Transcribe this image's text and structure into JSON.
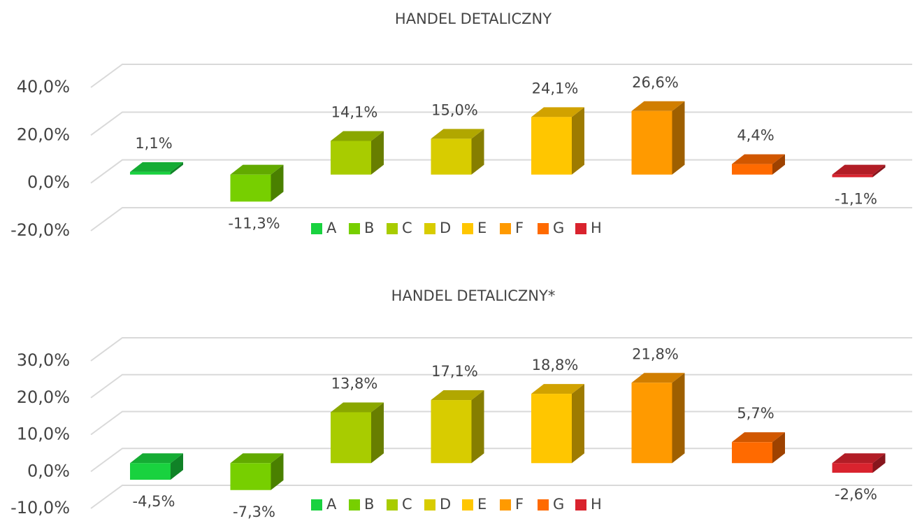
{
  "chart_data": [
    {
      "type": "bar3d",
      "title": "HANDEL DETALICZNY",
      "categories": [
        "A",
        "B",
        "C",
        "D",
        "E",
        "F",
        "G",
        "H"
      ],
      "colors": [
        "#19d23f",
        "#77cf00",
        "#a8cc00",
        "#d8cc00",
        "#ffc600",
        "#ff9a00",
        "#ff6a00",
        "#d9232e"
      ],
      "values": [
        1.1,
        -11.3,
        14.1,
        15.0,
        24.1,
        26.6,
        4.4,
        -1.1
      ],
      "value_labels": [
        "1,1%",
        "-11,3%",
        "14,1%",
        "15,0%",
        "24,1%",
        "26,6%",
        "4,4%",
        "-1,1%"
      ],
      "ylim": [
        -20,
        40
      ],
      "yticks": [
        {
          "value": -20,
          "label": "-20,0%"
        },
        {
          "value": 0,
          "label": "0,0%"
        },
        {
          "value": 20,
          "label": "20,0%"
        },
        {
          "value": 40,
          "label": "40,0%"
        }
      ],
      "grid": true,
      "legend": "bottom"
    },
    {
      "type": "bar3d",
      "title": "HANDEL DETALICZNY*",
      "categories": [
        "A",
        "B",
        "C",
        "D",
        "E",
        "F",
        "G",
        "H"
      ],
      "colors": [
        "#19d23f",
        "#77cf00",
        "#a8cc00",
        "#d8cc00",
        "#ffc600",
        "#ff9a00",
        "#ff6a00",
        "#d9232e"
      ],
      "values": [
        -4.5,
        -7.3,
        13.8,
        17.1,
        18.8,
        21.8,
        5.7,
        -2.6
      ],
      "value_labels": [
        "-4,5%",
        "-7,3%",
        "13,8%",
        "17,1%",
        "18,8%",
        "21,8%",
        "5,7%",
        "-2,6%"
      ],
      "ylim": [
        -10,
        30
      ],
      "yticks": [
        {
          "value": -10,
          "label": "-10,0%"
        },
        {
          "value": 0,
          "label": "0,0%"
        },
        {
          "value": 10,
          "label": "10,0%"
        },
        {
          "value": 20,
          "label": "20,0%"
        },
        {
          "value": 30,
          "label": "30,0%"
        }
      ],
      "grid": true,
      "legend": "bottom"
    }
  ]
}
